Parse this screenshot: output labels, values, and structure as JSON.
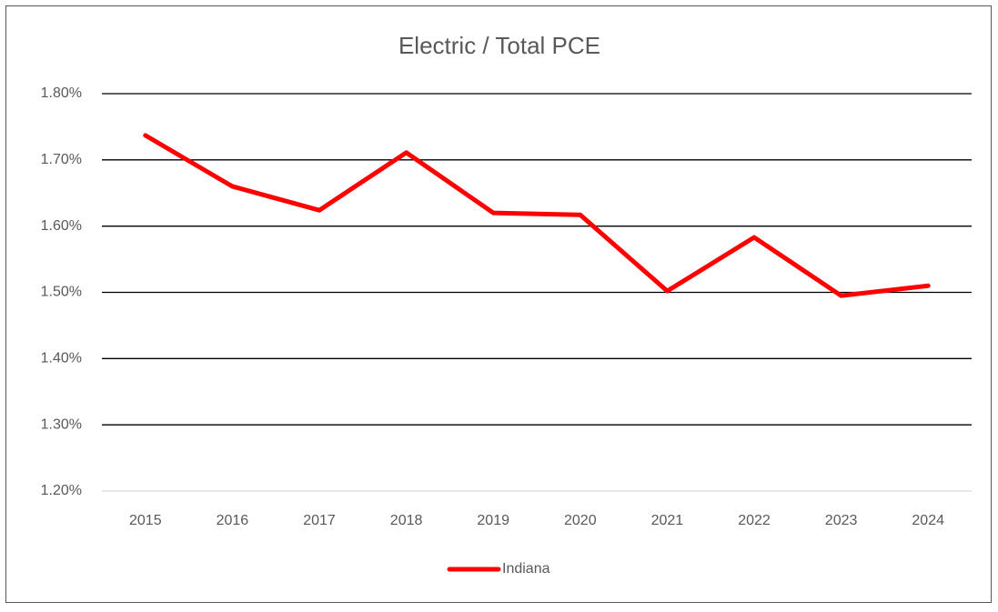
{
  "chart_data": {
    "type": "line",
    "title": "Electric / Total PCE",
    "categories": [
      "2015",
      "2016",
      "2017",
      "2018",
      "2019",
      "2020",
      "2021",
      "2022",
      "2023",
      "2024"
    ],
    "series": [
      {
        "name": "Indiana",
        "color": "#ff0000",
        "values": [
          1.737,
          1.66,
          1.624,
          1.711,
          1.62,
          1.617,
          1.502,
          1.583,
          1.495,
          1.51
        ]
      }
    ],
    "ylim": [
      1.2,
      1.8
    ],
    "yticks": [
      {
        "value": 1.2,
        "label": "1.20%"
      },
      {
        "value": 1.3,
        "label": "1.30%"
      },
      {
        "value": 1.4,
        "label": "1.40%"
      },
      {
        "value": 1.5,
        "label": "1.50%"
      },
      {
        "value": 1.6,
        "label": "1.60%"
      },
      {
        "value": 1.7,
        "label": "1.70%"
      },
      {
        "value": 1.8,
        "label": "1.80%"
      }
    ],
    "grid": true,
    "legend": "bottom"
  }
}
